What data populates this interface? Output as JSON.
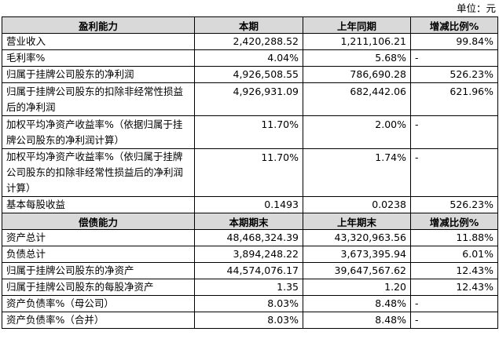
{
  "unit_label": "单位：元",
  "profit": {
    "headers": [
      "盈利能力",
      "本期",
      "上年同期",
      "增减比例%"
    ],
    "rows": [
      {
        "label": "营业收入",
        "current": "2,420,288.52",
        "prior": "1,211,106.21",
        "change": "99.84%"
      },
      {
        "label": "毛利率%",
        "current": "4.04%",
        "prior": "5.68%",
        "change": "-"
      },
      {
        "label": "归属于挂牌公司股东的净利润",
        "current": "4,926,508.55",
        "prior": "786,690.28",
        "change": "526.23%"
      },
      {
        "label": "归属于挂牌公司股东的扣除非经常性损益后的净利润",
        "current": "4,926,931.09",
        "prior": "682,442.06",
        "change": "621.96%"
      },
      {
        "label": "加权平均净资产收益率%（依据归属于挂牌公司股东的净利润计算）",
        "current": "11.70%",
        "prior": "2.00%",
        "change": "-"
      },
      {
        "label": "加权平均净资产收益率%（依归属于挂牌公司股东的扣除非经常性损益后的净利润计算）",
        "current": "11.70%",
        "prior": "1.74%",
        "change": "-"
      },
      {
        "label": "基本每股收益",
        "current": "0.1493",
        "prior": "0.0238",
        "change": "526.23%"
      }
    ]
  },
  "solvency": {
    "headers": [
      "偿债能力",
      "本期期末",
      "上年期末",
      "增减比例%"
    ],
    "rows": [
      {
        "label": "资产总计",
        "current": "48,468,324.39",
        "prior": "43,320,963.56",
        "change": "11.88%"
      },
      {
        "label": "负债总计",
        "current": "3,894,248.22",
        "prior": "3,673,395.94",
        "change": "6.01%"
      },
      {
        "label": "归属于挂牌公司股东的净资产",
        "current": "44,574,076.17",
        "prior": "39,647,567.62",
        "change": "12.43%"
      },
      {
        "label": "归属于挂牌公司股东的每股净资产",
        "current": "1.35",
        "prior": "1.20",
        "change": "12.43%"
      },
      {
        "label": "资产负债率%（母公司）",
        "current": "8.03%",
        "prior": "8.48%",
        "change": "-"
      },
      {
        "label": "资产负债率%（合并）",
        "current": "8.03%",
        "prior": "8.48%",
        "change": "-"
      }
    ]
  }
}
